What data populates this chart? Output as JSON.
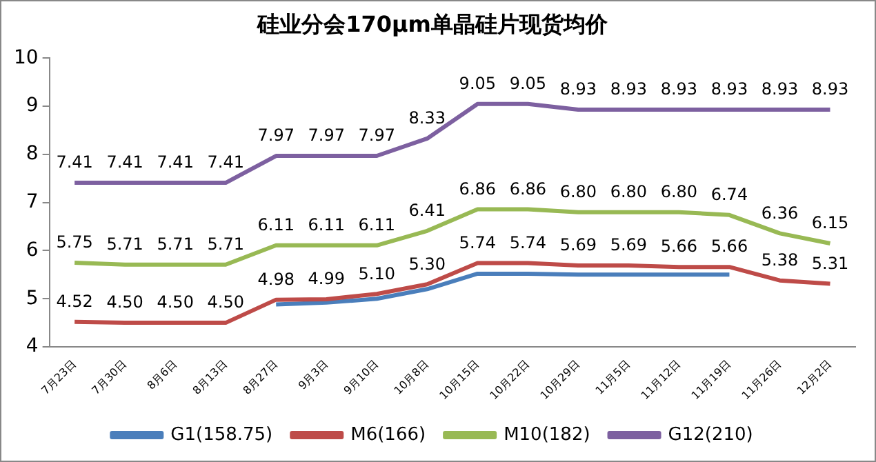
{
  "chart_data": {
    "type": "line",
    "title": "硅业分会170μm单晶硅片现货均价",
    "categories": [
      "7月23日",
      "7月30日",
      "8月6日",
      "8月13日",
      "8月27日",
      "9月3日",
      "9月10日",
      "10月8日",
      "10月15日",
      "10月22日",
      "10月29日",
      "11月5日",
      "11月12日",
      "11月19日",
      "11月26日",
      "12月2日"
    ],
    "ylim": [
      4,
      10
    ],
    "yticks": [
      4,
      5,
      6,
      7,
      8,
      9,
      10
    ],
    "grid": false,
    "legend": "bottom",
    "marker": "none",
    "series": [
      {
        "name": "G1(158.75)",
        "color": "#4a7ebb",
        "values": [
          null,
          null,
          null,
          null,
          4.88,
          4.92,
          5.0,
          5.2,
          5.52,
          5.52,
          5.5,
          5.5,
          5.5,
          5.5,
          null,
          null
        ]
      },
      {
        "name": "M6(166)",
        "color": "#be4b48",
        "values": [
          4.52,
          4.5,
          4.5,
          4.5,
          4.98,
          4.99,
          5.1,
          5.3,
          5.74,
          5.74,
          5.69,
          5.69,
          5.66,
          5.66,
          5.38,
          5.31
        ],
        "value_labels": [
          "4.52",
          "4.50",
          "4.50",
          "4.50",
          "4.98",
          "4.99",
          "5.10",
          "5.30",
          "5.74",
          "5.74",
          "5.69",
          "5.69",
          "5.66",
          "5.66",
          "5.38",
          "5.31"
        ]
      },
      {
        "name": "M10(182)",
        "color": "#98b954",
        "values": [
          5.75,
          5.71,
          5.71,
          5.71,
          6.11,
          6.11,
          6.11,
          6.41,
          6.86,
          6.86,
          6.8,
          6.8,
          6.8,
          6.74,
          6.36,
          6.15
        ],
        "value_labels": [
          "5.75",
          "5.71",
          "5.71",
          "5.71",
          "6.11",
          "6.11",
          "6.11",
          "6.41",
          "6.86",
          "6.86",
          "6.80",
          "6.80",
          "6.80",
          "6.74",
          "6.36",
          "6.15"
        ]
      },
      {
        "name": "G12(210)",
        "color": "#7d60a0",
        "values": [
          7.41,
          7.41,
          7.41,
          7.41,
          7.97,
          7.97,
          7.97,
          8.33,
          9.05,
          9.05,
          8.93,
          8.93,
          8.93,
          8.93,
          8.93,
          8.93
        ],
        "value_labels": [
          "7.41",
          "7.41",
          "7.41",
          "7.41",
          "7.97",
          "7.97",
          "7.97",
          "8.33",
          "9.05",
          "9.05",
          "8.93",
          "8.93",
          "8.93",
          "8.93",
          "8.93",
          "8.93"
        ]
      }
    ]
  }
}
